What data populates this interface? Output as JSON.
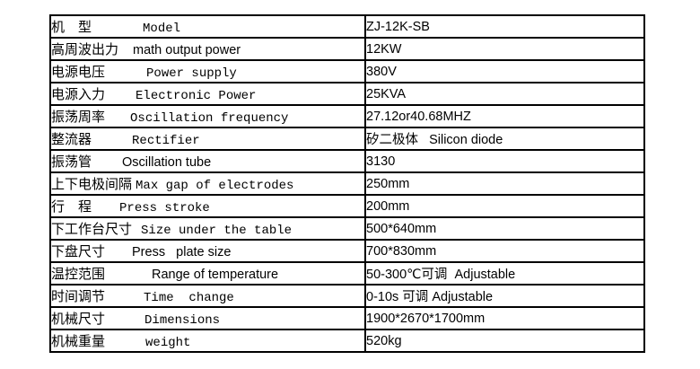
{
  "page": {
    "background": "#ffffff",
    "border_color": "#000000",
    "text_color": "#000000"
  },
  "table": {
    "rows": [
      {
        "cn": "机　型",
        "en": "Model",
        "value": "ZJ-12K-SB"
      },
      {
        "cn": "高周波出力",
        "en": "math output power",
        "value": "12KW"
      },
      {
        "cn": "电源电压",
        "en": "Power supply",
        "value": "380V"
      },
      {
        "cn": "电源入力",
        "en": "Electronic Power",
        "value": "25KVA"
      },
      {
        "cn": "振荡周率",
        "en": "Oscillation frequency",
        "value": "27.12or40.68MHZ"
      },
      {
        "cn": "整流器",
        "en": "Rectifier",
        "value": "矽二极体   Silicon diode"
      },
      {
        "cn": "振荡管",
        "en": "Oscillation tube",
        "value": "3130"
      },
      {
        "cn": "上下电极间隔",
        "en": "Max gap of electrodes",
        "value": "250mm"
      },
      {
        "cn": "行　程",
        "en": "Press stroke",
        "value": "200mm"
      },
      {
        "cn": "下工作台尺寸",
        "en": "Size under the table",
        "value": "500*640mm"
      },
      {
        "cn": "下盘尺寸",
        "en": "Press   plate size",
        "value": "700*830mm"
      },
      {
        "cn": "温控范围",
        "en": "Range of temperature",
        "value": "50-300℃可调  Adjustable"
      },
      {
        "cn": "时间调节",
        "en": "Time  change",
        "value": "0-10s 可调 Adjustable"
      },
      {
        "cn": "机械尺寸",
        "en": "Dimensions",
        "value": "1900*2670*1700mm"
      },
      {
        "cn": "机械重量",
        "en": "weight",
        "value": "520kg"
      }
    ]
  }
}
